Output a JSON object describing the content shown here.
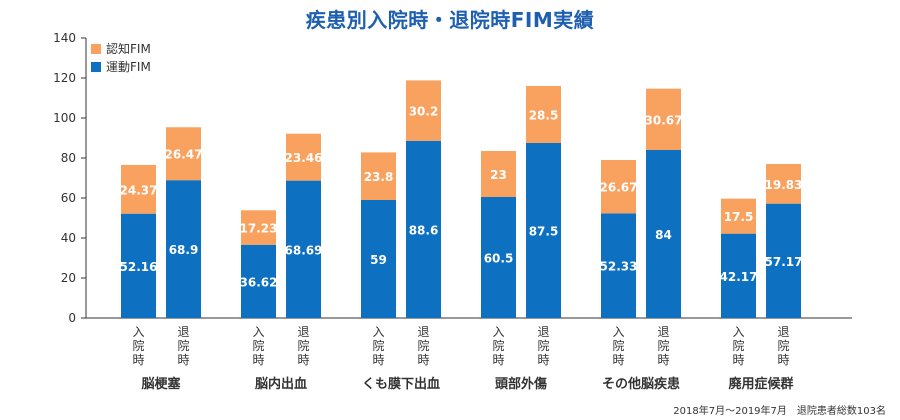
{
  "colors": {
    "title": "#1e5fb0",
    "cognitive": "#f9a25f",
    "motor": "#0d70c1",
    "axis": "#333333",
    "grid": "#bbbbbb"
  },
  "chart_data": {
    "type": "bar",
    "stacked": true,
    "title": "疾患別入院時・退院時FIM実績",
    "ylim": [
      0,
      140
    ],
    "yticks": [
      0,
      20,
      40,
      60,
      80,
      100,
      120,
      140
    ],
    "grid": false,
    "legend_position": "top-left",
    "groups": [
      "脳梗塞",
      "脳内出血",
      "くも膜下出血",
      "頭部外傷",
      "その他脳疾患",
      "廃用症候群"
    ],
    "bar_labels": [
      "入院時",
      "退院時"
    ],
    "categories": [
      "脳梗塞 入院時",
      "脳梗塞 退院時",
      "脳内出血 入院時",
      "脳内出血 退院時",
      "くも膜下出血 入院時",
      "くも膜下出血 退院時",
      "頭部外傷 入院時",
      "頭部外傷 退院時",
      "その他脳疾患 入院時",
      "その他脳疾患 退院時",
      "廃用症候群 入院時",
      "廃用症候群 退院時"
    ],
    "series": [
      {
        "name": "運動FIM",
        "labels": [
          "52.16",
          "68.9",
          "36.62",
          "68.69",
          "59",
          "88.6",
          "60.5",
          "87.5",
          "52.33",
          "84",
          "42.17",
          "57.17"
        ],
        "values": [
          52.16,
          68.9,
          36.62,
          68.69,
          59,
          88.6,
          60.5,
          87.5,
          52.33,
          84,
          42.17,
          57.17
        ]
      },
      {
        "name": "認知FIM",
        "labels": [
          "24.37",
          "26.47",
          "17.23",
          "23.46",
          "23.8",
          "30.2",
          "23",
          "28.5",
          "26.67",
          "30.67",
          "17.5",
          "19.83"
        ],
        "values": [
          24.37,
          26.47,
          17.23,
          23.46,
          23.8,
          30.2,
          23,
          28.5,
          26.67,
          30.67,
          17.5,
          19.83
        ]
      }
    ],
    "legend": [
      "認知FIM",
      "運動FIM"
    ]
  },
  "footnote": "2018年7月〜2019年7月　退院患者総数103名"
}
